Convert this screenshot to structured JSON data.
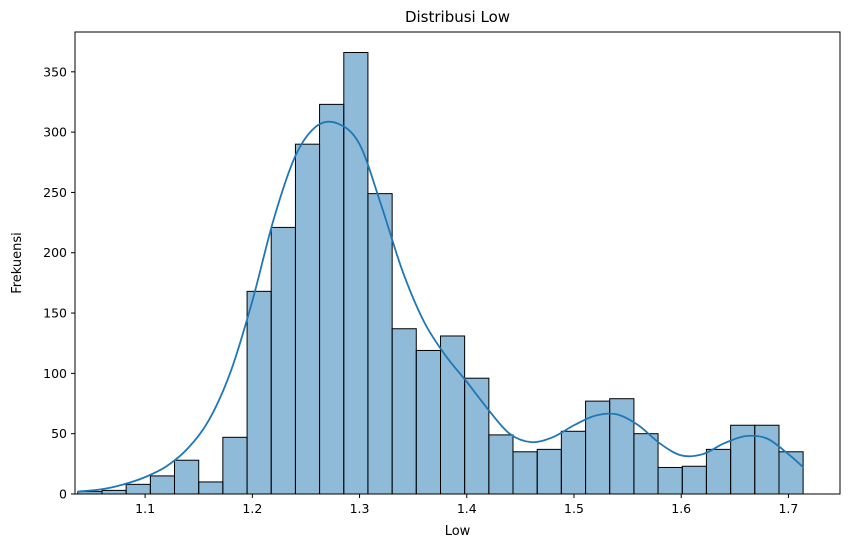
{
  "chart_data": {
    "type": "bar",
    "title": "Distribusi Low",
    "xlabel": "Low",
    "ylabel": "Frekuensi",
    "xlim": [
      1.0346,
      1.7481
    ],
    "ylim": [
      0,
      383
    ],
    "xticks": [
      1.1,
      1.2,
      1.3,
      1.4,
      1.5,
      1.6,
      1.7
    ],
    "yticks": [
      0,
      50,
      100,
      150,
      200,
      250,
      300,
      350
    ],
    "bin_edges": [
      1.0372,
      1.0598,
      1.0823,
      1.1049,
      1.1274,
      1.15,
      1.1725,
      1.1951,
      1.2176,
      1.2402,
      1.2627,
      1.2853,
      1.3078,
      1.3304,
      1.3529,
      1.3755,
      1.398,
      1.4206,
      1.4431,
      1.4657,
      1.4882,
      1.5108,
      1.5333,
      1.5559,
      1.5784,
      1.601,
      1.6235,
      1.6461,
      1.6686,
      1.6912,
      1.7137
    ],
    "counts": [
      2,
      3,
      8,
      15,
      28,
      10,
      47,
      168,
      221,
      290,
      323,
      366,
      249,
      137,
      119,
      131,
      96,
      49,
      35,
      37,
      52,
      77,
      79,
      50,
      22,
      23,
      37,
      57,
      57,
      35
    ],
    "kde": {
      "x": [
        1.037,
        1.06,
        1.08,
        1.1,
        1.12,
        1.14,
        1.16,
        1.18,
        1.2,
        1.22,
        1.24,
        1.26,
        1.28,
        1.3,
        1.32,
        1.34,
        1.36,
        1.38,
        1.4,
        1.42,
        1.44,
        1.46,
        1.48,
        1.5,
        1.52,
        1.54,
        1.56,
        1.58,
        1.6,
        1.62,
        1.64,
        1.66,
        1.68,
        1.7,
        1.714
      ],
      "y": [
        2,
        4,
        8,
        14,
        23,
        38,
        62,
        102,
        160,
        228,
        280,
        305,
        307,
        290,
        240,
        185,
        143,
        115,
        93,
        70,
        50,
        43,
        47,
        57,
        65,
        66,
        57,
        42,
        32,
        33,
        42,
        48,
        46,
        33,
        22
      ]
    },
    "colors": {
      "bar_fill": "#1f77b4",
      "bar_fill_opacity": 0.5,
      "bar_edge": "#000000",
      "kde_line": "#1f77b4"
    }
  }
}
